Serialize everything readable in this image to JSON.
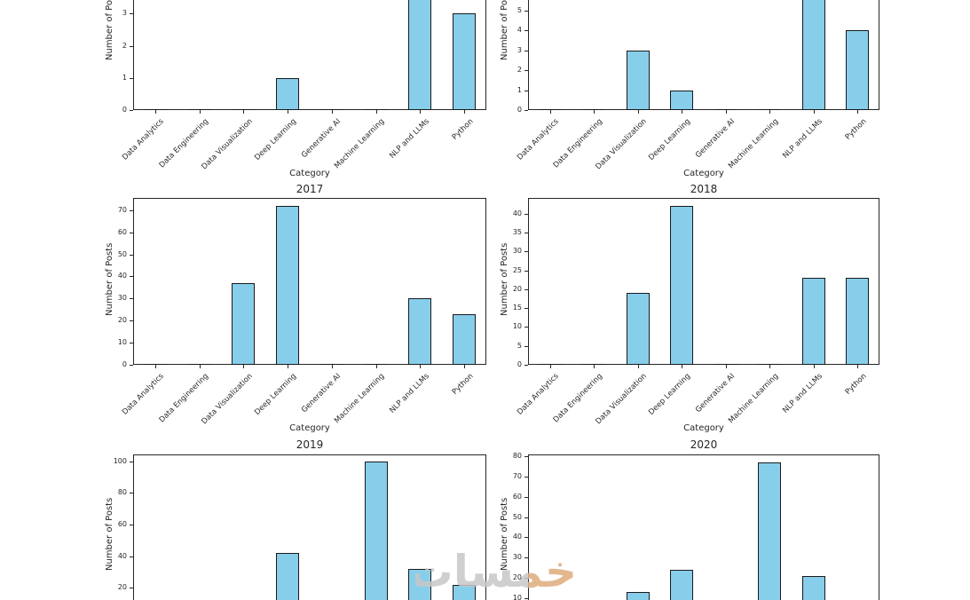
{
  "figure": {
    "background": "#ffffff",
    "bar_fill_color": "#87ceeb",
    "bar_edge_color": "#1a1a1a",
    "axis_color": "#262626",
    "xlabel": "Category",
    "ylabel": "Number of Posts",
    "description": "Grid of six bar-chart subplots of Number of Posts per Category by year; top row is cut off at the top of the screenshot, bottom row is cut off at the bottom."
  },
  "watermark": {
    "text": "خمسات",
    "color_main": "#c7c7c7",
    "color_accent": "#dfac7c"
  },
  "chart_data": {
    "type": "bar",
    "categories": [
      "Data Analytics",
      "Data Engineering",
      "Data Visualization",
      "Deep Learning",
      "Generative AI",
      "Machine Learning",
      "NLP and LLMs",
      "Python"
    ],
    "charts": [
      {
        "id": "top-left-partial",
        "title": null,
        "xlabel": "Category",
        "ylabel": "Number of Posts",
        "values": [
          0,
          0,
          0,
          1,
          0,
          0,
          null,
          3
        ],
        "yticks_visible": [
          0,
          1,
          2,
          3
        ],
        "cut": "top",
        "note": "Title and upper plot cut off by screenshot edge; NLP and LLMs bar extends beyond visible area (value > 3.4)."
      },
      {
        "id": "top-right-partial",
        "title": null,
        "xlabel": "Category",
        "ylabel": "Number of Posts",
        "values": [
          0,
          0,
          3,
          1,
          0,
          0,
          null,
          4
        ],
        "yticks_visible": [
          0,
          1,
          2,
          3,
          4,
          5
        ],
        "cut": "top",
        "note": "Title and upper plot cut off by screenshot edge; NLP and LLMs bar extends beyond visible area (value > 5.5)."
      },
      {
        "id": "2017",
        "title": "2017",
        "xlabel": "Category",
        "ylabel": "Number of Posts",
        "values": [
          0,
          0,
          37,
          72,
          0,
          0,
          30,
          23
        ],
        "yticks_visible": [
          0,
          10,
          20,
          30,
          40,
          50,
          60,
          70
        ],
        "cut": null,
        "note": ""
      },
      {
        "id": "2018",
        "title": "2018",
        "xlabel": "Category",
        "ylabel": "Number of Posts",
        "values": [
          0,
          0,
          19,
          42,
          0,
          0,
          23,
          23
        ],
        "yticks_visible": [
          0,
          5,
          10,
          15,
          20,
          25,
          30,
          35,
          40
        ],
        "cut": null,
        "note": ""
      },
      {
        "id": "2019",
        "title": "2019",
        "xlabel": "Category",
        "ylabel": "Number of Posts",
        "values": [
          0,
          0,
          0,
          42,
          0,
          100,
          32,
          22
        ],
        "yticks_visible": [
          20,
          40,
          60,
          80,
          100
        ],
        "cut": "bottom",
        "note": "X axis, category labels and y tick 0 cut off by bottom screenshot edge; bars shorter than ~12 are not visible."
      },
      {
        "id": "2020",
        "title": "2020",
        "xlabel": "Category",
        "ylabel": "Number of Posts",
        "values": [
          0,
          0,
          13,
          24,
          0,
          77,
          21,
          0
        ],
        "yticks_visible": [
          10,
          20,
          30,
          40,
          50,
          60,
          70,
          80
        ],
        "cut": "bottom",
        "note": "X axis, category labels and y tick 0 cut off by bottom screenshot edge; bars shorter than ~9 are not visible."
      }
    ]
  }
}
